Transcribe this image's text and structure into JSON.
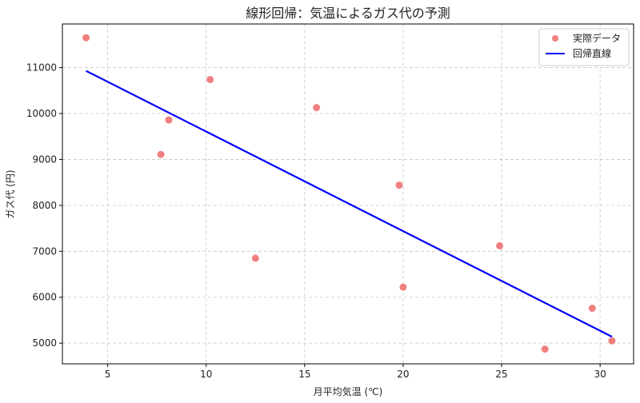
{
  "chart_data": {
    "type": "scatter",
    "title": "線形回帰：気温によるガス代の予測",
    "xlabel": "月平均気温 (℃)",
    "ylabel": "ガス代 (円)",
    "xlim": [
      2.7,
      31.7
    ],
    "ylim": [
      4550,
      11950
    ],
    "xticks": [
      5,
      10,
      15,
      20,
      25,
      30
    ],
    "yticks": [
      5000,
      6000,
      7000,
      8000,
      9000,
      10000,
      11000
    ],
    "grid": true,
    "legend_position": "top-right",
    "series": [
      {
        "name": "実際データ",
        "kind": "scatter",
        "color": "#f08080",
        "points": [
          {
            "x": 3.9,
            "y": 11650
          },
          {
            "x": 7.7,
            "y": 9110
          },
          {
            "x": 8.1,
            "y": 9860
          },
          {
            "x": 10.2,
            "y": 10740
          },
          {
            "x": 12.5,
            "y": 6850
          },
          {
            "x": 15.6,
            "y": 10130
          },
          {
            "x": 19.8,
            "y": 8440
          },
          {
            "x": 20.0,
            "y": 6220
          },
          {
            "x": 24.9,
            "y": 7120
          },
          {
            "x": 27.2,
            "y": 4870
          },
          {
            "x": 29.6,
            "y": 5760
          },
          {
            "x": 30.6,
            "y": 5050
          }
        ]
      },
      {
        "name": "回帰直線",
        "kind": "line",
        "color": "#0000ff",
        "points": [
          {
            "x": 3.9,
            "y": 10930
          },
          {
            "x": 30.6,
            "y": 5140
          }
        ]
      }
    ]
  }
}
